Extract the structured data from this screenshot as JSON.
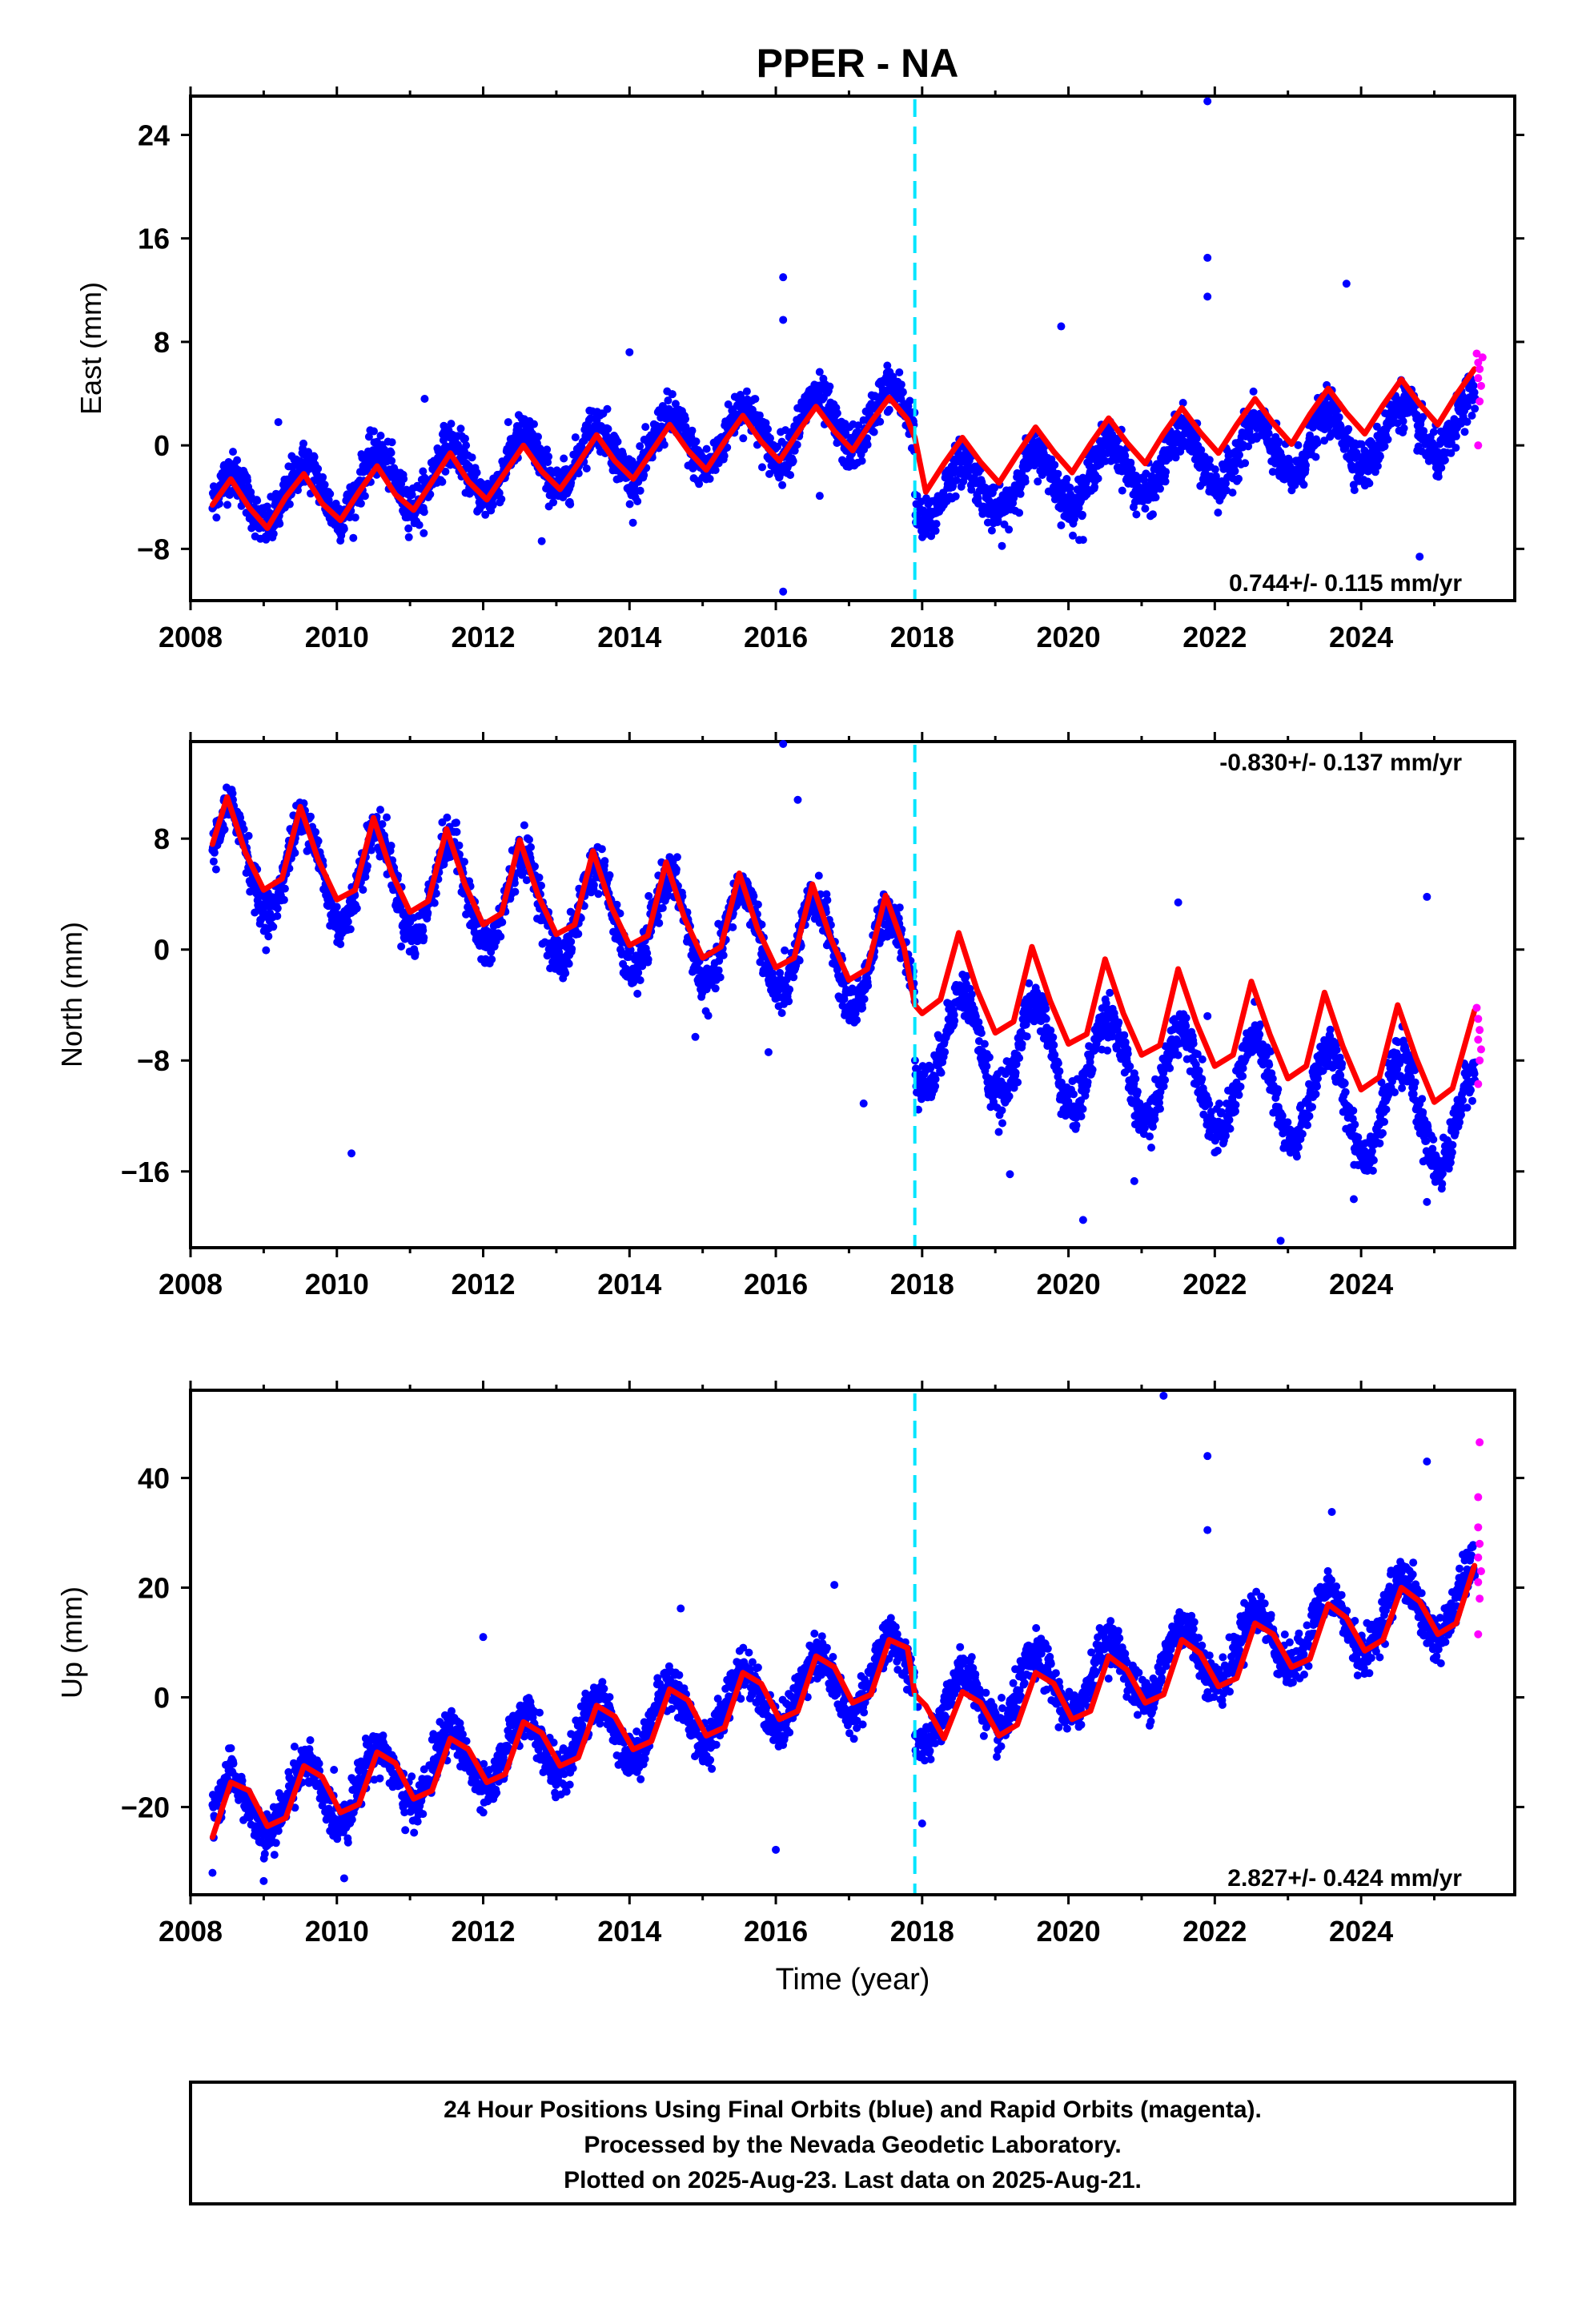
{
  "figure": {
    "title": "PPER - NA",
    "footer": {
      "lines": [
        "24 Hour Positions Using Final Orbits (blue) and Rapid Orbits (magenta).",
        "Processed by the Nevada Geodetic Laboratory.",
        "Plotted on 2025-Aug-23. Last data on 2025-Aug-21."
      ]
    },
    "colors": {
      "final_orbits": "#0000ff",
      "rapid_orbits": "#ff00ff",
      "model_fit": "#ff0000",
      "equipment_change": "#00e5ff",
      "frame": "#000000"
    }
  },
  "chart_data": [
    {
      "type": "scatter",
      "ylabel": "East (mm)",
      "xlabel": "",
      "xlim": [
        2008,
        2026.1
      ],
      "ylim": [
        -12,
        27
      ],
      "xticks": [
        2008,
        2010,
        2012,
        2014,
        2016,
        2018,
        2020,
        2022,
        2024
      ],
      "yticks": [
        -8,
        0,
        8,
        16,
        24
      ],
      "rate_label": "0.744+/- 0.115 mm/yr",
      "rate_label_position": "bottom-right",
      "grid": false,
      "equipment_change_year": 2017.9,
      "series": [
        {
          "name": "Final Orbits (blue)",
          "model": {
            "t0": 2008.3,
            "offset": -4.6,
            "rate": 0.744,
            "amp": 2.2,
            "step_year": 2017.9,
            "step": -6.5
          },
          "outliers": [
            [
              2021.9,
              26.6
            ],
            [
              2021.9,
              14.5
            ],
            [
              2021.9,
              11.5
            ],
            [
              2016.1,
              13.0
            ],
            [
              2016.1,
              9.7
            ],
            [
              2016.1,
              -11.3
            ],
            [
              2023.8,
              12.5
            ],
            [
              2019.9,
              9.2
            ],
            [
              2020.2,
              -7.3
            ],
            [
              2024.8,
              -8.6
            ],
            [
              2014.0,
              7.2
            ],
            [
              2011.2,
              3.6
            ],
            [
              2009.2,
              1.8
            ],
            [
              2012.8,
              -7.4
            ],
            [
              2016.6,
              -3.9
            ]
          ]
        },
        {
          "name": "Rapid Orbits (magenta)",
          "points": [
            [
              2025.58,
              7.1
            ],
            [
              2025.6,
              6.4
            ],
            [
              2025.62,
              5.9
            ],
            [
              2025.6,
              5.2
            ],
            [
              2025.64,
              4.6
            ],
            [
              2025.62,
              3.4
            ],
            [
              2025.6,
              0.0
            ],
            [
              2025.66,
              6.8
            ]
          ]
        },
        {
          "name": "Model fit (red)",
          "x": [
            2008.3,
            2008.55,
            2008.8,
            2009.05,
            2009.3,
            2009.55,
            2009.8,
            2010.05,
            2010.3,
            2010.55,
            2010.8,
            2011.05,
            2011.3,
            2011.55,
            2011.8,
            2012.05,
            2012.3,
            2012.55,
            2012.8,
            2013.05,
            2013.3,
            2013.55,
            2013.8,
            2014.05,
            2014.3,
            2014.55,
            2014.8,
            2015.05,
            2015.3,
            2015.55,
            2015.8,
            2016.05,
            2016.3,
            2016.55,
            2016.8,
            2017.05,
            2017.3,
            2017.55,
            2017.8,
            2017.9,
            2018.05,
            2018.3,
            2018.55,
            2018.8,
            2019.05,
            2019.3,
            2019.55,
            2019.8,
            2020.05,
            2020.3,
            2020.55,
            2020.8,
            2021.05,
            2021.3,
            2021.55,
            2021.8,
            2022.05,
            2022.3,
            2022.55,
            2022.8,
            2023.05,
            2023.3,
            2023.55,
            2023.8,
            2024.05,
            2024.3,
            2024.55,
            2024.8,
            2025.05,
            2025.3,
            2025.55
          ],
          "y": [
            -4.6,
            -2.6,
            -4.8,
            -6.4,
            -4.0,
            -2.2,
            -4.5,
            -5.8,
            -3.6,
            -1.6,
            -3.8,
            -5.0,
            -2.8,
            -0.6,
            -2.8,
            -4.2,
            -2.1,
            0.0,
            -2.0,
            -3.4,
            -1.4,
            0.8,
            -1.2,
            -2.6,
            -0.5,
            1.6,
            -0.4,
            -1.9,
            0.3,
            2.3,
            0.3,
            -1.2,
            1.0,
            3.0,
            1.1,
            -0.4,
            1.8,
            3.7,
            2.0,
            0.6,
            -3.6,
            -1.4,
            0.6,
            -1.3,
            -2.9,
            -0.7,
            1.4,
            -0.5,
            -2.1,
            0.1,
            2.1,
            0.2,
            -1.4,
            0.9,
            2.9,
            1.0,
            -0.6,
            1.6,
            3.6,
            1.7,
            0.1,
            2.4,
            4.4,
            2.5,
            0.9,
            3.1,
            5.1,
            3.2,
            1.6,
            3.9,
            5.9
          ]
        }
      ]
    },
    {
      "type": "scatter",
      "ylabel": "North (mm)",
      "xlabel": "",
      "xlim": [
        2008,
        2026.1
      ],
      "ylim": [
        -21.5,
        15
      ],
      "xticks": [
        2008,
        2010,
        2012,
        2014,
        2016,
        2018,
        2020,
        2022,
        2024
      ],
      "yticks": [
        -16,
        -8,
        0,
        8
      ],
      "rate_label": "-0.830+/- 0.137 mm/yr",
      "rate_label_position": "top-right",
      "grid": false,
      "equipment_change_year": 2017.9,
      "series": [
        {
          "name": "Final Orbits (blue)",
          "model": {
            "t0": 2008.3,
            "offset": 6.8,
            "rate": -0.83,
            "amp": 3.6,
            "step_year": 2017.9,
            "step": -5.0
          },
          "outliers": [
            [
              2016.1,
              15.0
            ],
            [
              2016.3,
              10.8
            ],
            [
              2010.2,
              -14.7
            ],
            [
              2014.9,
              -6.3
            ],
            [
              2015.9,
              -7.4
            ],
            [
              2017.2,
              -11.1
            ],
            [
              2019.2,
              -16.2
            ],
            [
              2020.2,
              -19.5
            ],
            [
              2020.9,
              -16.7
            ],
            [
              2021.9,
              -4.8
            ],
            [
              2022.9,
              -21.0
            ],
            [
              2023.9,
              -18.0
            ],
            [
              2024.9,
              -18.2
            ],
            [
              2025.2,
              -15.8
            ],
            [
              2024.9,
              3.8
            ],
            [
              2021.5,
              3.4
            ]
          ]
        },
        {
          "name": "Rapid Orbits (magenta)",
          "points": [
            [
              2025.58,
              -4.2
            ],
            [
              2025.6,
              -5.0
            ],
            [
              2025.62,
              -5.8
            ],
            [
              2025.6,
              -6.5
            ],
            [
              2025.64,
              -7.2
            ],
            [
              2025.62,
              -8.0
            ],
            [
              2025.6,
              -9.7
            ]
          ]
        },
        {
          "name": "Model fit (red)",
          "x": [
            2008.3,
            2008.5,
            2008.75,
            2009.0,
            2009.25,
            2009.5,
            2009.75,
            2010.0,
            2010.25,
            2010.5,
            2010.75,
            2011.0,
            2011.25,
            2011.5,
            2011.75,
            2012.0,
            2012.25,
            2012.5,
            2012.75,
            2013.0,
            2013.25,
            2013.5,
            2013.75,
            2014.0,
            2014.25,
            2014.5,
            2014.75,
            2015.0,
            2015.25,
            2015.5,
            2015.75,
            2016.0,
            2016.25,
            2016.5,
            2016.75,
            2017.0,
            2017.25,
            2017.5,
            2017.75,
            2017.9,
            2018.0,
            2018.25,
            2018.5,
            2018.75,
            2019.0,
            2019.25,
            2019.5,
            2019.75,
            2020.0,
            2020.25,
            2020.5,
            2020.75,
            2021.0,
            2021.25,
            2021.5,
            2021.75,
            2022.0,
            2022.25,
            2022.5,
            2022.75,
            2023.0,
            2023.25,
            2023.5,
            2023.75,
            2024.0,
            2024.25,
            2024.5,
            2024.75,
            2025.0,
            2025.25,
            2025.55
          ],
          "y": [
            7.6,
            11.0,
            7.0,
            4.3,
            5.1,
            10.3,
            6.4,
            3.6,
            4.3,
            9.5,
            5.5,
            2.7,
            3.5,
            8.7,
            4.7,
            1.8,
            2.6,
            7.9,
            3.9,
            1.1,
            1.8,
            7.1,
            3.1,
            0.3,
            1.0,
            6.3,
            2.3,
            -0.6,
            0.2,
            5.5,
            1.5,
            -1.3,
            -0.6,
            4.7,
            0.8,
            -2.2,
            -1.4,
            3.9,
            0.2,
            -4.0,
            -4.6,
            -3.6,
            1.2,
            -2.9,
            -6.0,
            -5.2,
            0.2,
            -3.7,
            -6.8,
            -6.1,
            -0.7,
            -4.6,
            -7.6,
            -6.9,
            -1.4,
            -5.3,
            -8.4,
            -7.6,
            -2.3,
            -6.1,
            -9.3,
            -8.4,
            -3.1,
            -7.0,
            -10.1,
            -9.2,
            -4.0,
            -7.8,
            -11.0,
            -10.0,
            -4.4
          ]
        }
      ]
    },
    {
      "type": "scatter",
      "ylabel": "Up (mm)",
      "xlabel": "Time (year)",
      "xlim": [
        2008,
        2026.1
      ],
      "ylim": [
        -36,
        56
      ],
      "xticks": [
        2008,
        2010,
        2012,
        2014,
        2016,
        2018,
        2020,
        2022,
        2024
      ],
      "yticks": [
        -20,
        0,
        20,
        40
      ],
      "rate_label": "2.827+/- 0.424 mm/yr",
      "rate_label_position": "bottom-right",
      "grid": false,
      "equipment_change_year": 2017.9,
      "series": [
        {
          "name": "Final Orbits (blue)",
          "model": {
            "t0": 2008.3,
            "offset": -21.5,
            "rate": 2.827,
            "amp": 6.0,
            "step_year": 2017.9,
            "step": -9.0
          },
          "outliers": [
            [
              2021.3,
              55.0
            ],
            [
              2021.9,
              44.0
            ],
            [
              2024.9,
              43.0
            ],
            [
              2023.6,
              33.8
            ],
            [
              2021.9,
              30.5
            ],
            [
              2016.0,
              -27.8
            ],
            [
              2008.3,
              -32.0
            ],
            [
              2009.0,
              -33.5
            ],
            [
              2010.1,
              -33.0
            ],
            [
              2016.8,
              20.5
            ],
            [
              2014.7,
              16.2
            ],
            [
              2012.0,
              11.0
            ],
            [
              2018.0,
              -23.0
            ]
          ]
        },
        {
          "name": "Rapid Orbits (magenta)",
          "points": [
            [
              2025.62,
              46.5
            ],
            [
              2025.6,
              36.5
            ],
            [
              2025.6,
              31.0
            ],
            [
              2025.62,
              28.0
            ],
            [
              2025.6,
              25.5
            ],
            [
              2025.64,
              23.0
            ],
            [
              2025.6,
              21.0
            ],
            [
              2025.62,
              18.0
            ],
            [
              2025.6,
              11.5
            ]
          ]
        },
        {
          "name": "Model fit (red)",
          "x": [
            2008.3,
            2008.55,
            2008.8,
            2009.05,
            2009.3,
            2009.55,
            2009.8,
            2010.05,
            2010.3,
            2010.55,
            2010.8,
            2011.05,
            2011.3,
            2011.55,
            2011.8,
            2012.05,
            2012.3,
            2012.55,
            2012.8,
            2013.05,
            2013.3,
            2013.55,
            2013.8,
            2014.05,
            2014.3,
            2014.55,
            2014.8,
            2015.05,
            2015.3,
            2015.55,
            2015.8,
            2016.05,
            2016.3,
            2016.55,
            2016.8,
            2017.05,
            2017.3,
            2017.55,
            2017.8,
            2017.9,
            2018.05,
            2018.3,
            2018.55,
            2018.8,
            2019.05,
            2019.3,
            2019.55,
            2019.8,
            2020.05,
            2020.3,
            2020.55,
            2020.8,
            2021.05,
            2021.3,
            2021.55,
            2021.8,
            2022.05,
            2022.3,
            2022.55,
            2022.8,
            2023.05,
            2023.3,
            2023.55,
            2023.8,
            2024.05,
            2024.3,
            2024.55,
            2024.8,
            2025.05,
            2025.3,
            2025.55
          ],
          "y": [
            -25.5,
            -15.5,
            -17.0,
            -23.5,
            -22.0,
            -12.5,
            -14.5,
            -21.0,
            -19.5,
            -10.0,
            -12.0,
            -18.5,
            -17.0,
            -7.5,
            -9.5,
            -15.5,
            -14.0,
            -4.5,
            -6.5,
            -12.5,
            -11.0,
            -1.5,
            -3.5,
            -9.5,
            -8.0,
            1.5,
            -0.5,
            -7.0,
            -5.5,
            4.5,
            2.5,
            -4.0,
            -2.5,
            7.5,
            5.5,
            -1.0,
            0.5,
            10.5,
            9.0,
            0.5,
            -1.5,
            -7.5,
            1.0,
            -1.0,
            -7.0,
            -5.0,
            4.5,
            2.5,
            -4.0,
            -2.5,
            7.5,
            5.0,
            -1.0,
            0.5,
            10.5,
            8.0,
            2.0,
            3.5,
            13.5,
            11.5,
            5.5,
            7.0,
            17.0,
            14.5,
            8.5,
            10.5,
            20.0,
            17.5,
            11.5,
            13.5,
            24.0
          ]
        }
      ]
    }
  ]
}
